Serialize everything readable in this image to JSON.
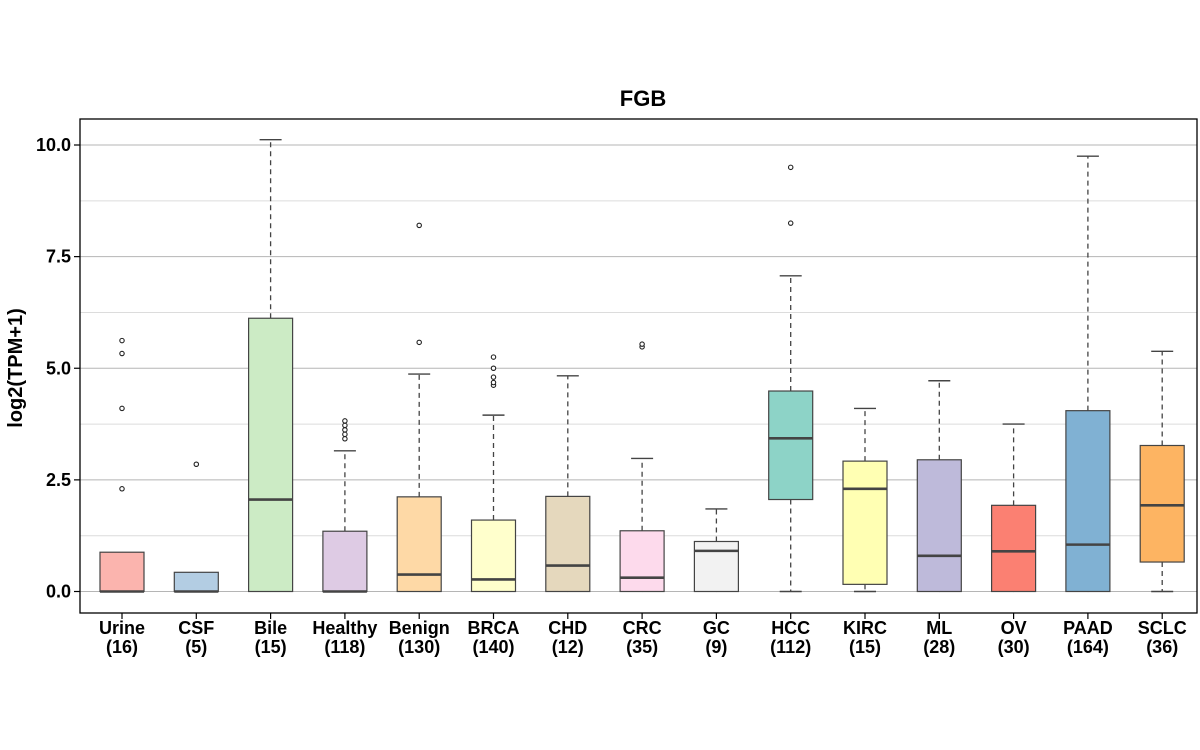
{
  "chart_data": {
    "type": "box",
    "title": "FGB",
    "xlabel": "",
    "ylabel": "log2(TPM+1)",
    "ylim": [
      -0.45,
      10.6
    ],
    "yticks": [
      "0.0",
      "2.5",
      "5.0",
      "7.5",
      "10.0"
    ],
    "ytick_values": [
      0,
      2.5,
      5.0,
      7.5,
      10.0
    ],
    "grid": true,
    "legend": "none",
    "categories": [
      {
        "name": "Urine",
        "count": "(16)",
        "color": "#fbb4ae",
        "whisker_low": 0,
        "q1": 0,
        "median": 0,
        "q3": 0.88,
        "whisker_high": 0.88,
        "outliers": [
          2.3,
          4.1,
          5.33,
          5.62
        ]
      },
      {
        "name": "CSF",
        "count": "(5)",
        "color": "#b3cde3",
        "whisker_low": 0,
        "q1": 0,
        "median": 0,
        "q3": 0.43,
        "whisker_high": 0.43,
        "outliers": [
          2.85
        ]
      },
      {
        "name": "Bile",
        "count": "(15)",
        "color": "#ccebc5",
        "whisker_low": 0,
        "q1": 0,
        "median": 2.06,
        "q3": 6.12,
        "whisker_high": 10.12,
        "outliers": []
      },
      {
        "name": "Healthy",
        "count": "(118)",
        "color": "#decbe4",
        "whisker_low": 0,
        "q1": 0,
        "median": 0,
        "q3": 1.35,
        "whisker_high": 3.15,
        "outliers": [
          3.42,
          3.52,
          3.62,
          3.72,
          3.82
        ]
      },
      {
        "name": "Benign",
        "count": "(130)",
        "color": "#fed9a6",
        "whisker_low": 0,
        "q1": 0,
        "median": 0.38,
        "q3": 2.12,
        "whisker_high": 4.87,
        "outliers": [
          5.58,
          8.2
        ]
      },
      {
        "name": "BRCA",
        "count": "(140)",
        "color": "#ffffcc",
        "whisker_low": 0,
        "q1": 0,
        "median": 0.27,
        "q3": 1.6,
        "whisker_high": 3.95,
        "outliers": [
          4.62,
          4.68,
          4.8,
          5.0,
          5.25
        ]
      },
      {
        "name": "CHD",
        "count": "(12)",
        "color": "#e5d8bd",
        "whisker_low": 0,
        "q1": 0,
        "median": 0.58,
        "q3": 2.13,
        "whisker_high": 4.83,
        "outliers": []
      },
      {
        "name": "CRC",
        "count": "(35)",
        "color": "#fddaec",
        "whisker_low": 0,
        "q1": 0,
        "median": 0.31,
        "q3": 1.36,
        "whisker_high": 2.98,
        "outliers": [
          5.48,
          5.54
        ]
      },
      {
        "name": "GC",
        "count": "(9)",
        "color": "#f2f2f2",
        "whisker_low": 0,
        "q1": 0,
        "median": 0.91,
        "q3": 1.12,
        "whisker_high": 1.85,
        "outliers": []
      },
      {
        "name": "HCC",
        "count": "(112)",
        "color": "#8dd3c7",
        "whisker_low": 0,
        "q1": 2.06,
        "median": 3.43,
        "q3": 4.49,
        "whisker_high": 7.07,
        "outliers": [
          8.25,
          9.5
        ]
      },
      {
        "name": "KIRC",
        "count": "(15)",
        "color": "#ffffb3",
        "whisker_low": 0,
        "q1": 0.16,
        "median": 2.3,
        "q3": 2.92,
        "whisker_high": 4.1,
        "outliers": []
      },
      {
        "name": "ML",
        "count": "(28)",
        "color": "#bebada",
        "whisker_low": 0,
        "q1": 0,
        "median": 0.8,
        "q3": 2.95,
        "whisker_high": 4.72,
        "outliers": []
      },
      {
        "name": "OV",
        "count": "(30)",
        "color": "#fb8072",
        "whisker_low": 0,
        "q1": 0,
        "median": 0.9,
        "q3": 1.93,
        "whisker_high": 3.75,
        "outliers": []
      },
      {
        "name": "PAAD",
        "count": "(164)",
        "color": "#80b1d3",
        "whisker_low": 0,
        "q1": 0,
        "median": 1.05,
        "q3": 4.05,
        "whisker_high": 9.75,
        "outliers": []
      },
      {
        "name": "SCLC",
        "count": "(36)",
        "color": "#fdb462",
        "whisker_low": 0,
        "q1": 0.66,
        "median": 1.93,
        "q3": 3.27,
        "whisker_high": 5.38,
        "outliers": []
      }
    ]
  }
}
